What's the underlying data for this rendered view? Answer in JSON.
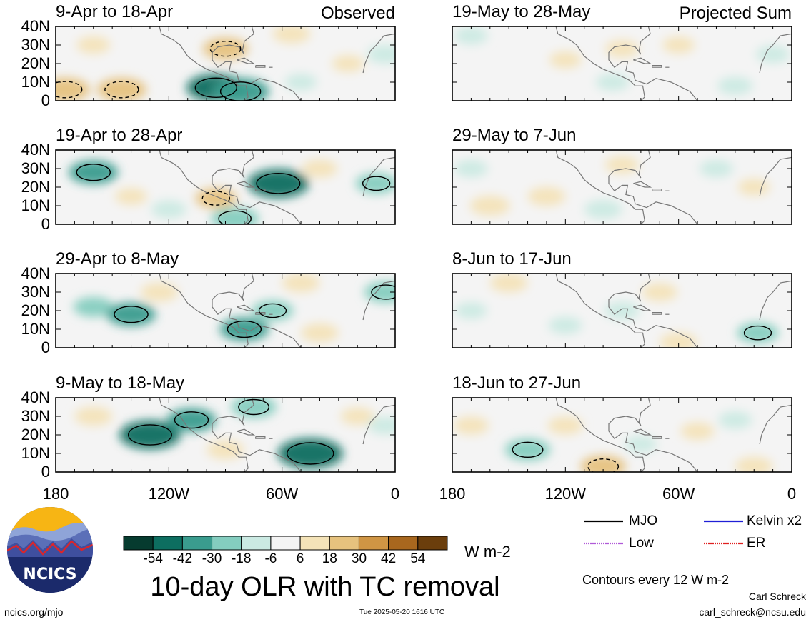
{
  "map": {
    "chart_data": {
      "type": "map",
      "field": "10-day OLR with TC removal",
      "region": {
        "lon_range": [
          -180,
          0
        ],
        "lat_range": [
          0,
          40
        ]
      },
      "x_ticks": [
        "180",
        "120W",
        "60W",
        "0"
      ],
      "y_ticks": [
        "40N",
        "30N",
        "20N",
        "10N",
        "0"
      ],
      "panels": [
        {
          "title": "9-Apr to 18-Apr",
          "tag": "Observed",
          "column": "left",
          "anomalies": [
            {
              "lon": -175,
              "lat": 6,
              "value": 30
            },
            {
              "lon": -145,
              "lat": 6,
              "value": 30
            },
            {
              "lon": -160,
              "lat": 30,
              "value": 10
            },
            {
              "lon": -90,
              "lat": 28,
              "value": 25
            },
            {
              "lon": -55,
              "lat": 36,
              "value": 15
            },
            {
              "lon": -95,
              "lat": 7,
              "value": -42
            },
            {
              "lon": -82,
              "lat": 5,
              "value": -40
            },
            {
              "lon": -50,
              "lat": 10,
              "value": -8
            },
            {
              "lon": -5,
              "lat": 25,
              "value": -15
            },
            {
              "lon": -25,
              "lat": 20,
              "value": 8
            }
          ]
        },
        {
          "title": "19-Apr to 28-Apr",
          "tag": "",
          "column": "left",
          "anomalies": [
            {
              "lon": -160,
              "lat": 28,
              "value": -30
            },
            {
              "lon": -95,
              "lat": 14,
              "value": 20
            },
            {
              "lon": -62,
              "lat": 22,
              "value": -45
            },
            {
              "lon": -120,
              "lat": 8,
              "value": -12
            },
            {
              "lon": -85,
              "lat": 3,
              "value": -28
            },
            {
              "lon": -40,
              "lat": 30,
              "value": 12
            },
            {
              "lon": -10,
              "lat": 22,
              "value": -20
            },
            {
              "lon": -140,
              "lat": 15,
              "value": 8
            }
          ]
        },
        {
          "title": "29-Apr to 8-May",
          "tag": "",
          "column": "left",
          "anomalies": [
            {
              "lon": -160,
              "lat": 22,
              "value": -18
            },
            {
              "lon": -140,
              "lat": 18,
              "value": -30
            },
            {
              "lon": -125,
              "lat": 30,
              "value": 15
            },
            {
              "lon": -65,
              "lat": 20,
              "value": -20
            },
            {
              "lon": -80,
              "lat": 10,
              "value": -30
            },
            {
              "lon": -5,
              "lat": 30,
              "value": -22
            },
            {
              "lon": -50,
              "lat": 35,
              "value": 15
            },
            {
              "lon": -40,
              "lat": 8,
              "value": 15
            }
          ]
        },
        {
          "title": "9-May to 18-May",
          "tag": "",
          "column": "left",
          "anomalies": [
            {
              "lon": -130,
              "lat": 20,
              "value": -45
            },
            {
              "lon": -108,
              "lat": 28,
              "value": -30
            },
            {
              "lon": -45,
              "lat": 10,
              "value": -50
            },
            {
              "lon": -75,
              "lat": 35,
              "value": -25
            },
            {
              "lon": -160,
              "lat": 30,
              "value": 15
            },
            {
              "lon": -90,
              "lat": 12,
              "value": 15
            },
            {
              "lon": -20,
              "lat": 30,
              "value": 10
            },
            {
              "lon": -5,
              "lat": 25,
              "value": -12
            }
          ]
        },
        {
          "title": "19-May to 28-May",
          "tag": "Projected Sum",
          "column": "right",
          "anomalies": [
            {
              "lon": -170,
              "lat": 35,
              "value": -10
            },
            {
              "lon": -120,
              "lat": 22,
              "value": 8
            },
            {
              "lon": -90,
              "lat": 28,
              "value": 10
            },
            {
              "lon": -95,
              "lat": 10,
              "value": -10
            },
            {
              "lon": -30,
              "lat": 8,
              "value": -12
            },
            {
              "lon": -60,
              "lat": 30,
              "value": 8
            },
            {
              "lon": -10,
              "lat": 25,
              "value": -10
            }
          ]
        },
        {
          "title": "29-May to 7-Jun",
          "tag": "",
          "column": "right",
          "anomalies": [
            {
              "lon": -160,
              "lat": 10,
              "value": 18
            },
            {
              "lon": -130,
              "lat": 15,
              "value": 15
            },
            {
              "lon": -100,
              "lat": 8,
              "value": -15
            },
            {
              "lon": -170,
              "lat": 30,
              "value": -10
            },
            {
              "lon": -40,
              "lat": 30,
              "value": -10
            },
            {
              "lon": -90,
              "lat": 32,
              "value": 10
            },
            {
              "lon": -20,
              "lat": 20,
              "value": 8
            }
          ]
        },
        {
          "title": "8-Jun to 17-Jun",
          "tag": "",
          "column": "right",
          "anomalies": [
            {
              "lon": -150,
              "lat": 35,
              "value": 15
            },
            {
              "lon": -120,
              "lat": 12,
              "value": -10
            },
            {
              "lon": -90,
              "lat": 20,
              "value": -12
            },
            {
              "lon": -70,
              "lat": 30,
              "value": 12
            },
            {
              "lon": -18,
              "lat": 8,
              "value": -20
            },
            {
              "lon": -60,
              "lat": 3,
              "value": 15
            },
            {
              "lon": -170,
              "lat": 20,
              "value": -8
            }
          ]
        },
        {
          "title": "18-Jun to 27-Jun",
          "tag": "",
          "column": "right",
          "anomalies": [
            {
              "lon": -170,
              "lat": 25,
              "value": 12
            },
            {
              "lon": -140,
              "lat": 12,
              "value": -25
            },
            {
              "lon": -120,
              "lat": 25,
              "value": 12
            },
            {
              "lon": -100,
              "lat": 3,
              "value": 25
            },
            {
              "lon": -50,
              "lat": 22,
              "value": 10
            },
            {
              "lon": -30,
              "lat": 28,
              "value": -10
            },
            {
              "lon": -20,
              "lat": 3,
              "value": 15
            },
            {
              "lon": -80,
              "lat": 15,
              "value": -8
            }
          ]
        }
      ]
    }
  },
  "colorbar": {
    "labels": [
      "-54",
      "-42",
      "-30",
      "-18",
      "-6",
      "6",
      "18",
      "30",
      "42",
      "54"
    ],
    "colors": [
      "#063b2f",
      "#0d6e60",
      "#3a9c8e",
      "#84cdbf",
      "#cbeae3",
      "#f4f4f4",
      "#f4e3b8",
      "#e6c27e",
      "#cf9544",
      "#a8671e",
      "#6b3e0c"
    ],
    "units": "W m-2"
  },
  "title": "10-day OLR with TC removal",
  "legend": {
    "items": [
      {
        "label": "MJO",
        "color": "#000000"
      },
      {
        "label": "Kelvin x2",
        "color": "#1f1fd6"
      },
      {
        "label": "Low",
        "color": "#b05ad8"
      },
      {
        "label": "ER",
        "color": "#e02020"
      }
    ],
    "contour_note": "Contours every 12 W m-2"
  },
  "logo": {
    "text": "NCICS"
  },
  "footer": {
    "url": "ncics.org/mjo",
    "timestamp": "Tue 2025-05-20 1616 UTC",
    "author": "Carl Schreck",
    "email": "carl_schreck@ncsu.edu"
  }
}
